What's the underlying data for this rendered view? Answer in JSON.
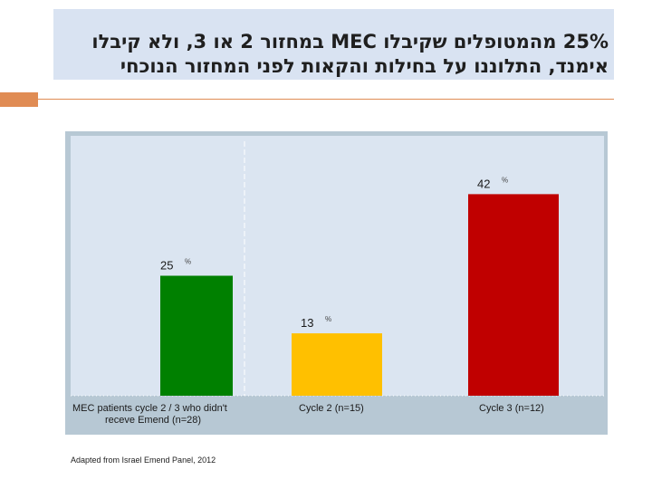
{
  "slide": {
    "title_line1": "25% מהמטופלים שקיבלו MEC במחזור 2 או 3, ולא קיבלו",
    "title_line2": "אימנד, התלוננו על בחילות והקאות לפני המחזור הנוכחי",
    "source": "Adapted from Israel Emend Panel, 2012",
    "colors": {
      "title_bg": "#d9e3f2",
      "accent": "#e08c54",
      "chart_bg": "#b7c8d4",
      "plot_bg": "#dbe5f1"
    }
  },
  "chart_data": {
    "type": "bar",
    "title": "",
    "xlabel": "",
    "ylabel": "",
    "ylim": [
      0,
      50
    ],
    "grid": false,
    "legend": "none",
    "categories": [
      "MEC patients cycle 2 / 3 who didn't receve Emend (n=28)",
      "Cycle 2 (n=15)",
      "Cycle 3 (n=12)"
    ],
    "category_lines": [
      [
        "MEC patients cycle 2 / 3 who didn't",
        "receve Emend  (n=28)"
      ],
      [
        "Cycle  2 (n=15)"
      ],
      [
        "Cycle 3 (n=12)"
      ]
    ],
    "values": [
      25,
      13,
      42
    ],
    "value_labels": [
      "25",
      "13",
      "42"
    ],
    "unit": "%",
    "colors": [
      "#008000",
      "#ffc000",
      "#c00000"
    ]
  }
}
